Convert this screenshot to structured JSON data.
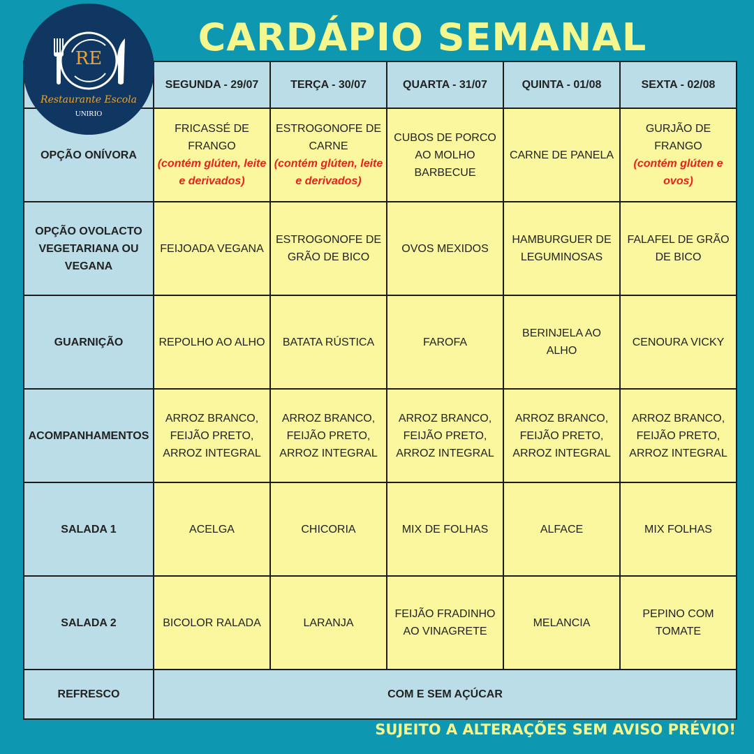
{
  "title": "CARDÁPIO SEMANAL",
  "footer": "SUJEITO A ALTERAÇÕES SEM AVISO PRÉVIO!",
  "logo": {
    "initials": "RE",
    "name": "Restaurante Escola",
    "institution": "UNIRIO"
  },
  "colors": {
    "background": "#0D97B1",
    "title": "#F4F78E",
    "header_cell": "#BADDE8",
    "menu_cell": "#FBF79E",
    "allergen_note": "#E8221B"
  },
  "days": [
    "SEGUNDA - 29/07",
    "TERÇA - 30/07",
    "QUARTA - 31/07",
    "QUINTA - 01/08",
    "SEXTA - 02/08"
  ],
  "rows": [
    {
      "label": "OPÇÃO ONÍVORA",
      "cells": [
        {
          "text": "FRICASSÉ DE FRANGO",
          "note": "(contém glúten, leite e derivados)"
        },
        {
          "text": "ESTROGONOFE DE CARNE",
          "note": "(contém glúten, leite e derivados)"
        },
        {
          "text": "CUBOS DE PORCO AO MOLHO BARBECUE"
        },
        {
          "text": "CARNE DE PANELA"
        },
        {
          "text": "GURJÃO DE FRANGO",
          "note": "(contém glúten e ovos)"
        }
      ]
    },
    {
      "label": "OPÇÃO OVOLACTO VEGETARIANA OU VEGANA",
      "cells": [
        {
          "text": "FEIJOADA VEGANA"
        },
        {
          "text": "ESTROGONOFE DE GRÃO DE BICO"
        },
        {
          "text": "OVOS MEXIDOS"
        },
        {
          "text": "HAMBURGUER DE LEGUMINOSAS"
        },
        {
          "text": "FALAFEL DE GRÃO DE BICO"
        }
      ]
    },
    {
      "label": "GUARNIÇÃO",
      "cells": [
        {
          "text": "REPOLHO AO ALHO"
        },
        {
          "text": "BATATA RÚSTICA"
        },
        {
          "text": "FAROFA"
        },
        {
          "text": "BERINJELA AO ALHO"
        },
        {
          "text": "CENOURA VICKY"
        }
      ]
    },
    {
      "label": "ACOMPANHAMENTOS",
      "cells": [
        {
          "text": "ARROZ BRANCO, FEIJÃO PRETO, ARROZ INTEGRAL"
        },
        {
          "text": "ARROZ BRANCO, FEIJÃO PRETO, ARROZ INTEGRAL"
        },
        {
          "text": "ARROZ BRANCO, FEIJÃO PRETO, ARROZ INTEGRAL"
        },
        {
          "text": "ARROZ BRANCO, FEIJÃO PRETO, ARROZ INTEGRAL"
        },
        {
          "text": "ARROZ BRANCO, FEIJÃO PRETO, ARROZ INTEGRAL"
        }
      ]
    },
    {
      "label": "SALADA 1",
      "cells": [
        {
          "text": "ACELGA"
        },
        {
          "text": "CHICORIA"
        },
        {
          "text": "MIX DE FOLHAS"
        },
        {
          "text": "ALFACE"
        },
        {
          "text": "MIX FOLHAS"
        }
      ]
    },
    {
      "label": "SALADA 2",
      "cells": [
        {
          "text": "BICOLOR RALADA"
        },
        {
          "text": "LARANJA"
        },
        {
          "text": "FEIJÃO FRADINHO AO VINAGRETE"
        },
        {
          "text": "MELANCIA"
        },
        {
          "text": "PEPINO COM TOMATE"
        }
      ]
    }
  ],
  "refresco": {
    "label": "REFRESCO",
    "value": "COM E SEM AÇÚCAR"
  }
}
